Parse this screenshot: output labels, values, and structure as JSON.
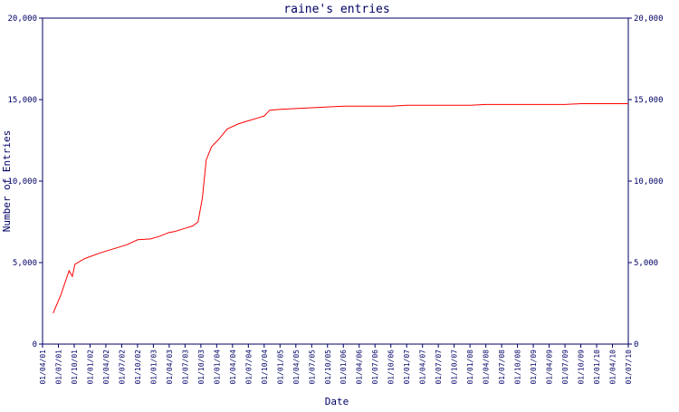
{
  "chart_data": {
    "type": "line",
    "title": "raine's entries",
    "xlabel": "Date",
    "ylabel": "Number of Entries",
    "grid": false,
    "colors": {
      "line": "#ff0000",
      "axes": "#000066",
      "text": "#000066"
    },
    "y_ticks": [
      0,
      5000,
      10000,
      15000,
      20000
    ],
    "y_tick_labels": [
      "0",
      "5,000",
      "10,000",
      "15,000",
      "20,000"
    ],
    "ylim": [
      0,
      20000
    ],
    "x_tick_labels": [
      "01/04/01",
      "01/07/01",
      "01/10/01",
      "01/01/02",
      "01/04/02",
      "01/07/02",
      "01/10/02",
      "01/01/03",
      "01/04/03",
      "01/07/03",
      "01/10/03",
      "01/01/04",
      "01/04/04",
      "01/07/04",
      "01/10/04",
      "01/01/05",
      "01/04/05",
      "01/07/05",
      "01/10/05",
      "01/01/06",
      "01/04/06",
      "01/07/06",
      "01/10/06",
      "01/01/07",
      "01/04/07",
      "01/07/07",
      "01/10/07",
      "01/01/08",
      "01/04/08",
      "01/07/08",
      "01/10/08",
      "01/01/09",
      "01/04/09",
      "01/07/09",
      "01/10/09",
      "01/01/10",
      "01/04/10",
      "01/07/10"
    ],
    "xlim": [
      "2001-04-01",
      "2010-07-01"
    ],
    "series": [
      {
        "color": "#ff0000",
        "points": [
          [
            "2001-06-01",
            1900
          ],
          [
            "2001-07-15",
            3000
          ],
          [
            "2001-09-01",
            4500
          ],
          [
            "2001-09-20",
            4150
          ],
          [
            "2001-10-05",
            4900
          ],
          [
            "2001-12-01",
            5250
          ],
          [
            "2002-03-01",
            5600
          ],
          [
            "2002-06-01",
            5900
          ],
          [
            "2002-08-01",
            6100
          ],
          [
            "2002-10-01",
            6400
          ],
          [
            "2002-12-15",
            6450
          ],
          [
            "2003-02-01",
            6600
          ],
          [
            "2003-04-01",
            6850
          ],
          [
            "2003-05-01",
            6900
          ],
          [
            "2003-07-01",
            7100
          ],
          [
            "2003-08-15",
            7250
          ],
          [
            "2003-09-15",
            7500
          ],
          [
            "2003-10-10",
            9000
          ],
          [
            "2003-11-01",
            11300
          ],
          [
            "2003-12-01",
            12100
          ],
          [
            "2004-01-15",
            12600
          ],
          [
            "2004-03-01",
            13200
          ],
          [
            "2004-05-01",
            13500
          ],
          [
            "2004-07-01",
            13700
          ],
          [
            "2004-09-01",
            13900
          ],
          [
            "2004-10-01",
            14000
          ],
          [
            "2004-11-01",
            14350
          ],
          [
            "2005-01-01",
            14400
          ],
          [
            "2005-04-01",
            14450
          ],
          [
            "2005-07-01",
            14500
          ],
          [
            "2005-10-01",
            14550
          ],
          [
            "2006-01-01",
            14600
          ],
          [
            "2006-07-01",
            14600
          ],
          [
            "2006-10-01",
            14600
          ],
          [
            "2007-01-01",
            14650
          ],
          [
            "2007-07-01",
            14650
          ],
          [
            "2008-01-01",
            14650
          ],
          [
            "2008-04-01",
            14700
          ],
          [
            "2009-01-01",
            14700
          ],
          [
            "2009-07-01",
            14700
          ],
          [
            "2009-10-01",
            14750
          ],
          [
            "2010-07-01",
            14750
          ]
        ]
      }
    ]
  }
}
